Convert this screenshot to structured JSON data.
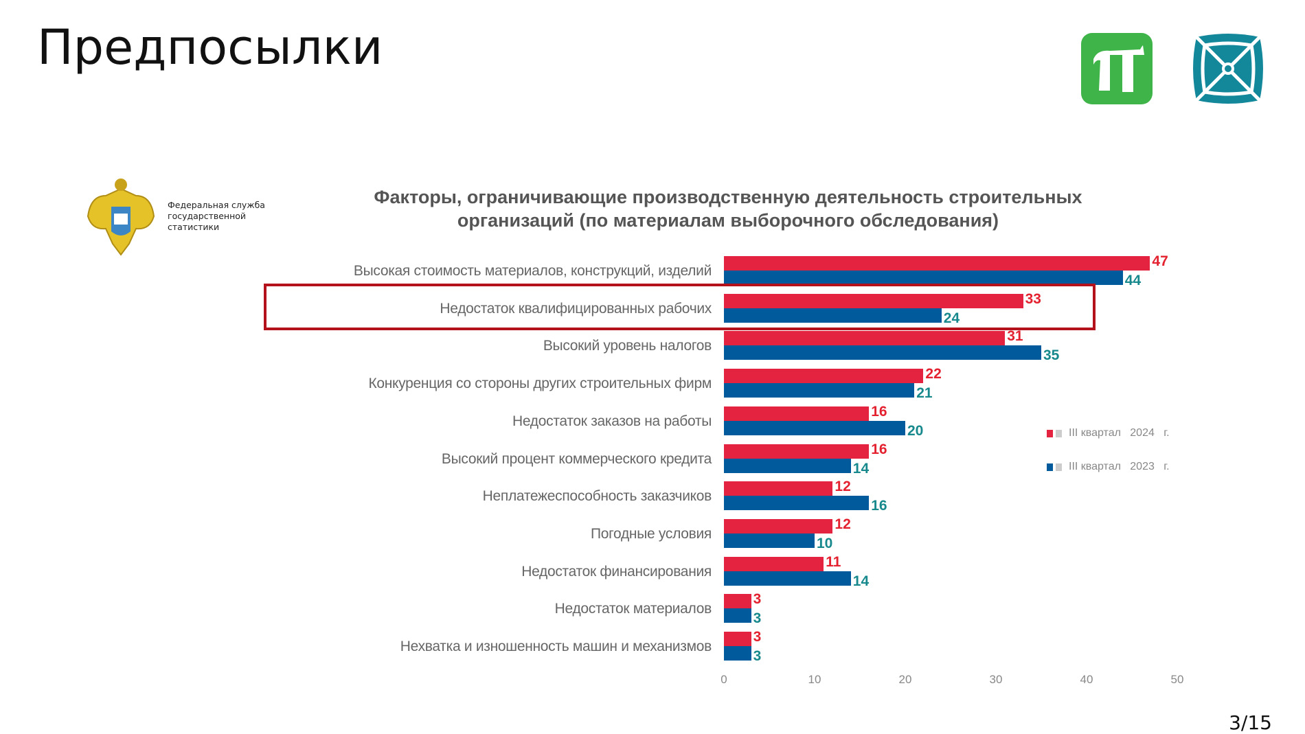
{
  "slide": {
    "title": "Предпосылки",
    "page": "3/15"
  },
  "rosstat": {
    "name": "Федеральная служба государственной статистики",
    "line1": "Федеральная служба",
    "line2": "государственной",
    "line3": "статистики"
  },
  "logos": [
    "pi-logo",
    "square-logo"
  ],
  "colors": {
    "series_2024": "#e3233f",
    "series_2023": "#005a9c",
    "label_2024": "#e3212f",
    "label_2023": "#17898c",
    "highlight": "#b3121d",
    "pi_green": "#3fb449",
    "teal": "#13889b"
  },
  "chart_data": {
    "type": "bar",
    "orientation": "horizontal",
    "title": "Факторы, ограничивающие производственную деятельность строительных организаций (по материалам выборочного обследования)",
    "title_line1": "Факторы, ограничивающие производственную деятельность строительных",
    "title_line2": "организаций (по материалам выборочного обследования)",
    "categories": [
      "Высокая стоимость материалов, конструкций, изделий",
      "Недостаток квалифицированных рабочих",
      "Высокий уровень налогов",
      "Конкуренция со стороны других строительных фирм",
      "Недостаток заказов на работы",
      "Высокий процент коммерческого кредита",
      "Неплатежеспособность заказчиков",
      "Погодные условия",
      "Недостаток финансирования",
      "Недостаток материалов",
      "Нехватка и изношенность машин и механизмов"
    ],
    "series": [
      {
        "name": "III квартал 2024 г.",
        "values": [
          47,
          33,
          31,
          22,
          16,
          16,
          12,
          12,
          11,
          3,
          3
        ]
      },
      {
        "name": "III квартал 2023 г.",
        "values": [
          44,
          24,
          35,
          21,
          20,
          14,
          16,
          10,
          14,
          3,
          3
        ]
      }
    ],
    "legend_labels": [
      "III квартал   2024   г.",
      "III квартал   2023   г."
    ],
    "xlim": [
      0,
      50
    ],
    "xticks": [
      "0",
      "10",
      "20",
      "30",
      "40",
      "50"
    ],
    "highlighted_category": "Недостаток квалифицированных рабочих",
    "legend_position": "right",
    "grid": false
  }
}
